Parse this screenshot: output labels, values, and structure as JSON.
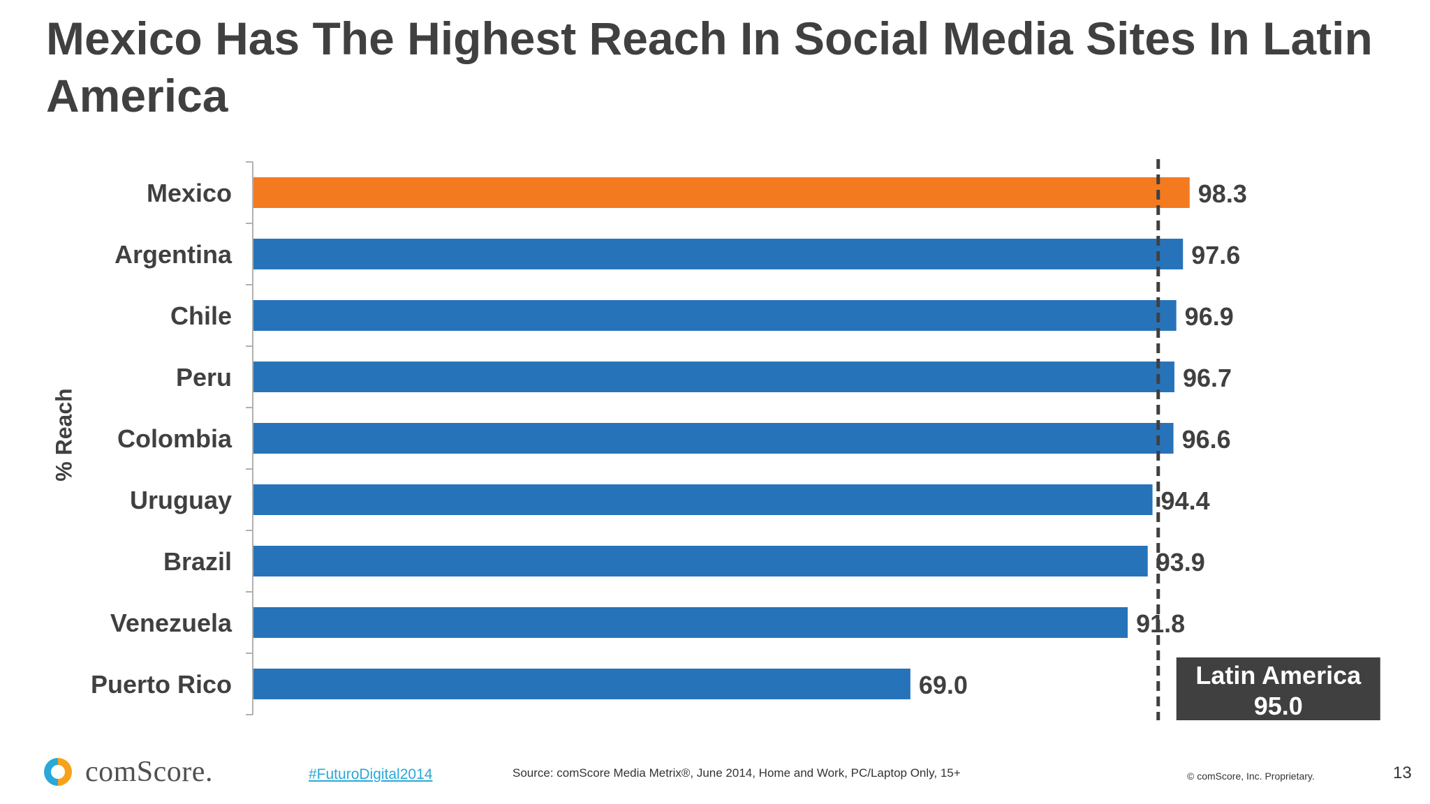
{
  "page": {
    "title": "Mexico Has The Highest Reach In Social Media Sites In Latin America"
  },
  "chart_data": {
    "type": "bar",
    "orientation": "horizontal",
    "ylabel": "% Reach",
    "categories": [
      "Mexico",
      "Argentina",
      "Chile",
      "Peru",
      "Colombia",
      "Uruguay",
      "Brazil",
      "Venezuela",
      "Puerto Rico"
    ],
    "values": [
      98.3,
      97.6,
      96.9,
      96.7,
      96.6,
      94.4,
      93.9,
      91.8,
      69.0
    ],
    "value_labels": [
      "98.3",
      "97.6",
      "96.9",
      "96.7",
      "96.6",
      "94.4",
      "93.9",
      "91.8",
      "69.0"
    ],
    "xlim": [
      0,
      100
    ],
    "highlight_category": "Mexico",
    "colors": {
      "default": "#2773ba",
      "highlight": "#f47a20"
    },
    "reference_line": {
      "value": 95.0,
      "label": "Latin America",
      "value_label": "95.0",
      "style": "dashed",
      "box_color": "#404040"
    },
    "grid": false
  },
  "footer": {
    "logo_text": "comScore.",
    "hashtag": "#FuturoDigital2014",
    "source": "Source: comScore Media Metrix®, June 2014, Home and Work, PC/Laptop Only, 15+",
    "copyright": "© comScore, Inc. Proprietary.",
    "page_number": "13"
  }
}
